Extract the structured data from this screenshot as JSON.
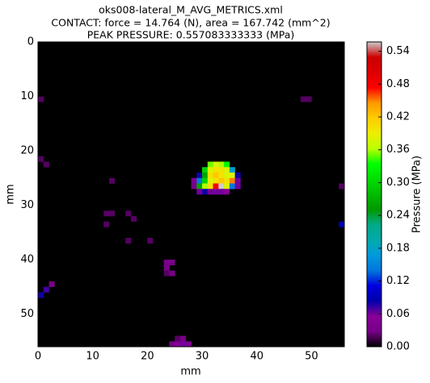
{
  "chart_data": {
    "type": "heatmap",
    "title": [
      "oks008-lateral_M_AVG_METRICS.xml",
      "CONTACT: force = 14.764 (N), area = 167.742 (mm^2)",
      "PEAK PRESSURE: 0.557083333333 (MPa)"
    ],
    "x_label": "mm",
    "y_label": "mm",
    "colorbar_label": "Pressure (MPa)",
    "colormap": "nipy_spectral",
    "xlim": [
      0,
      56
    ],
    "ylim": [
      56,
      0
    ],
    "xticks": [
      0,
      10,
      20,
      30,
      40,
      50
    ],
    "yticks": [
      0,
      10,
      20,
      30,
      40,
      50
    ],
    "clim": [
      0,
      0.557083333333
    ],
    "cticks": [
      {
        "value": 0,
        "label": "0.00"
      },
      {
        "value": 0.06,
        "label": "0.06"
      },
      {
        "value": 0.12,
        "label": "0.12"
      },
      {
        "value": 0.18,
        "label": "0.18"
      },
      {
        "value": 0.24,
        "label": "0.24"
      },
      {
        "value": 0.3,
        "label": "0.30"
      },
      {
        "value": 0.36,
        "label": "0.36"
      },
      {
        "value": 0.42,
        "label": "0.42"
      },
      {
        "value": 0.48,
        "label": "0.48"
      },
      {
        "value": 0.54,
        "label": "0.54"
      }
    ],
    "cells": {
      "x": [
        31,
        32,
        33,
        34,
        30,
        31,
        32,
        33,
        34,
        35,
        29,
        30,
        31,
        32,
        33,
        34,
        35,
        36,
        28,
        29,
        30,
        31,
        32,
        33,
        34,
        35,
        36,
        28,
        29,
        30,
        31,
        32,
        33,
        34,
        35,
        36,
        29,
        30,
        31,
        32,
        33,
        34,
        0,
        1,
        2,
        55,
        55,
        0,
        25,
        26,
        27,
        24,
        25,
        26,
        23,
        24,
        23,
        24,
        23,
        12,
        13,
        16,
        17,
        20,
        16,
        12,
        0,
        48,
        49,
        1,
        13
      ],
      "y": [
        22,
        22,
        22,
        22,
        23,
        23,
        23,
        23,
        23,
        23,
        24,
        24,
        24,
        24,
        24,
        24,
        24,
        24,
        25,
        25,
        25,
        25,
        25,
        25,
        25,
        25,
        25,
        26,
        26,
        26,
        26,
        26,
        26,
        26,
        26,
        26,
        27,
        27,
        27,
        27,
        27,
        27,
        46,
        45,
        44,
        33,
        26,
        21,
        55,
        55,
        55,
        55,
        54,
        54,
        40,
        40,
        41,
        42,
        42,
        31,
        31,
        31,
        32,
        36,
        36,
        33,
        10,
        10,
        10,
        22,
        25
      ],
      "values": [
        0.35,
        0.38,
        0.36,
        0.33,
        0.3,
        0.38,
        0.4,
        0.4,
        0.38,
        0.18,
        0.08,
        0.26,
        0.4,
        0.42,
        0.4,
        0.38,
        0.38,
        0.08,
        0.04,
        0.14,
        0.3,
        0.38,
        0.4,
        0.42,
        0.4,
        0.45,
        0.06,
        0.03,
        0.26,
        0.36,
        0.4,
        0.48,
        0.557,
        0.38,
        0.14,
        0.06,
        0.06,
        0.08,
        0.06,
        0.06,
        0.06,
        0.05,
        0.08,
        0.07,
        0.03,
        0.09,
        0.02,
        0.02,
        0.05,
        0.06,
        0.04,
        0.03,
        0.02,
        0.03,
        0.03,
        0.03,
        0.03,
        0.03,
        0.02,
        0.02,
        0.02,
        0.02,
        0.02,
        0.02,
        0.02,
        0.02,
        0.02,
        0.02,
        0.02,
        0.02,
        0.02
      ]
    }
  }
}
